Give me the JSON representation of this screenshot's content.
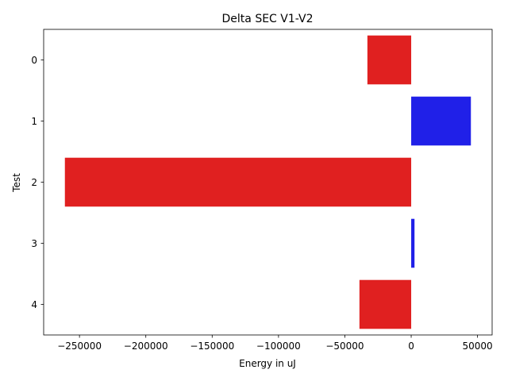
{
  "chart_data": {
    "type": "bar",
    "orientation": "horizontal",
    "title": "Delta SEC V1-V2",
    "xlabel": "Energy in uJ",
    "ylabel": "Test",
    "categories": [
      "0",
      "1",
      "2",
      "3",
      "4"
    ],
    "values": [
      -33000,
      45000,
      -261000,
      2500,
      -39000
    ],
    "xlim": [
      -277000,
      61000
    ],
    "xticks": [
      -250000,
      -200000,
      -150000,
      -100000,
      -50000,
      0,
      50000
    ],
    "xtick_labels": [
      "−250000",
      "−200000",
      "−150000",
      "−100000",
      "−50000",
      "0",
      "50000"
    ],
    "grid": false,
    "legend": "none",
    "colors": {
      "negative": "#e02020",
      "positive": "#2020e8"
    }
  }
}
